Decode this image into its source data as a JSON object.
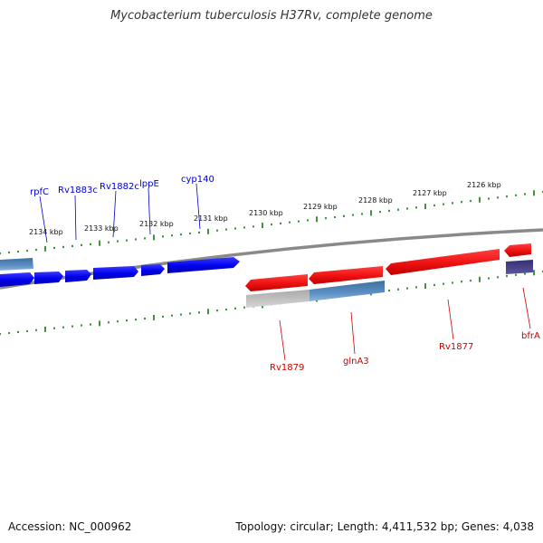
{
  "title": "Mycobacterium tuberculosis H37Rv, complete genome",
  "footer": {
    "accession": "Accession: NC_000962",
    "summary": "Topology: circular; Length: 4,411,532 bp; Genes: 4,038"
  },
  "colors": {
    "forward_gene": "#0000ee",
    "reverse_gene": "#ee1111",
    "forward_label": "#0000cc",
    "reverse_label": "#cc0000",
    "backbone": "#777777",
    "tick": "#117711"
  },
  "scale_labels": [
    "2134 kbp",
    "2133 kbp",
    "2132 kbp",
    "2131 kbp",
    "2130 kbp",
    "2129 kbp",
    "2128 kbp",
    "2127 kbp",
    "2126 kbp"
  ],
  "forward_labels": [
    "rpfC",
    "Rv1883c",
    "Rv1882c",
    "lppE",
    "cyp140"
  ],
  "reverse_labels": [
    "Rv1879",
    "glnA3",
    "Rv1877",
    "bfrA"
  ]
}
